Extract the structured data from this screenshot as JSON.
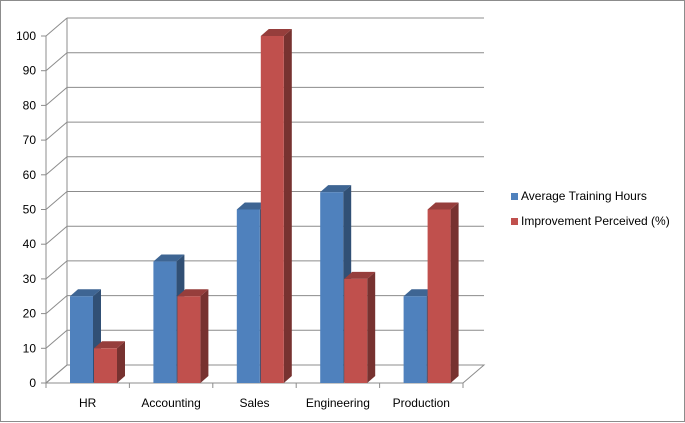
{
  "chart_data": {
    "type": "bar",
    "style": "3d-clustered-column",
    "categories": [
      "HR",
      "Accounting",
      "Sales",
      "Engineering",
      "Production"
    ],
    "series": [
      {
        "name": "Average Training Hours",
        "values": [
          25,
          35,
          50,
          55,
          25
        ],
        "color": "#4f81bd"
      },
      {
        "name": "Improvement Perceived (%)",
        "values": [
          10,
          25,
          100,
          30,
          50
        ],
        "color": "#c0504d"
      }
    ],
    "ylim": [
      0,
      100
    ],
    "yticks": [
      0,
      10,
      20,
      30,
      40,
      50,
      60,
      70,
      80,
      90,
      100
    ],
    "grid": true,
    "legend_position": "right"
  }
}
